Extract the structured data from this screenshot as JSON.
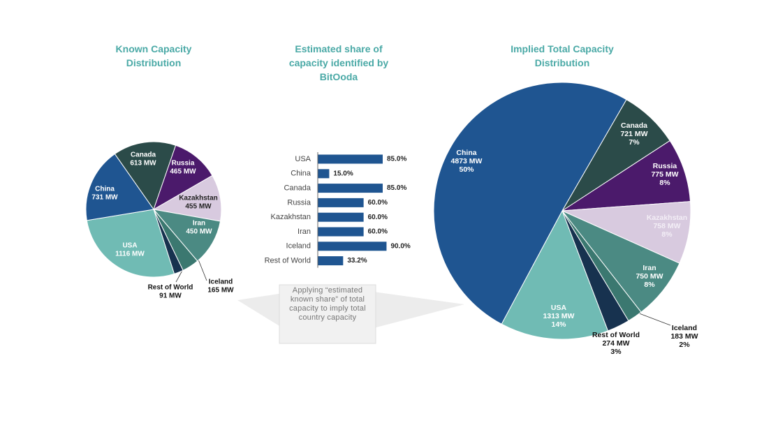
{
  "chart_data": [
    {
      "type": "pie",
      "title": "Known Capacity Distribution",
      "categories": [
        "Canada",
        "Russia",
        "Kazakhstan",
        "Iran",
        "Iceland",
        "Rest of World",
        "USA",
        "China"
      ],
      "values": [
        613,
        465,
        455,
        450,
        165,
        91,
        1116,
        731
      ],
      "value_labels": [
        "613 MW",
        "465 MW",
        "455 MW",
        "450 MW",
        "165 MW",
        "91 MW",
        "1116 MW",
        "731 MW"
      ],
      "colors": [
        "#2b4b49",
        "#4b1a6b",
        "#d8cadf",
        "#4b8a83",
        "#3b7870",
        "#17324f",
        "#70bbb4",
        "#1f5591"
      ]
    },
    {
      "type": "bar",
      "title": "Estimated share of capacity identified by BitOoda",
      "categories": [
        "USA",
        "China",
        "Canada",
        "Russia",
        "Kazakhstan",
        "Iran",
        "Iceland",
        "Rest of World"
      ],
      "values": [
        85.0,
        15.0,
        85.0,
        60.0,
        60.0,
        60.0,
        90.0,
        33.2
      ],
      "value_labels": [
        "85.0%",
        "15.0%",
        "85.0%",
        "60.0%",
        "60.0%",
        "60.0%",
        "90.0%",
        "33.2%"
      ],
      "color": "#1f5591",
      "annotation": "Applying “estimated known share” of total capacity to imply total country capacity"
    },
    {
      "type": "pie",
      "title": "Implied Total Capacity Distribution",
      "categories": [
        "Canada",
        "Russia",
        "Kazakhstan",
        "Iran",
        "Iceland",
        "Rest of World",
        "USA",
        "China"
      ],
      "values": [
        721,
        775,
        758,
        750,
        183,
        274,
        1313,
        4873
      ],
      "value_labels": [
        "721 MW",
        "775 MW",
        "758 MW",
        "750 MW",
        "183 MW",
        "274 MW",
        "1313 MW",
        "4873 MW"
      ],
      "shares": [
        7,
        8,
        8,
        8,
        2,
        3,
        14,
        50
      ],
      "share_labels": [
        "7%",
        "8%",
        "8%",
        "8%",
        "2%",
        "3%",
        "14%",
        "50%"
      ],
      "colors": [
        "#2b4b49",
        "#4b1a6b",
        "#d8cadf",
        "#4b8a83",
        "#3b7870",
        "#17324f",
        "#70bbb4",
        "#1f5591"
      ]
    }
  ]
}
